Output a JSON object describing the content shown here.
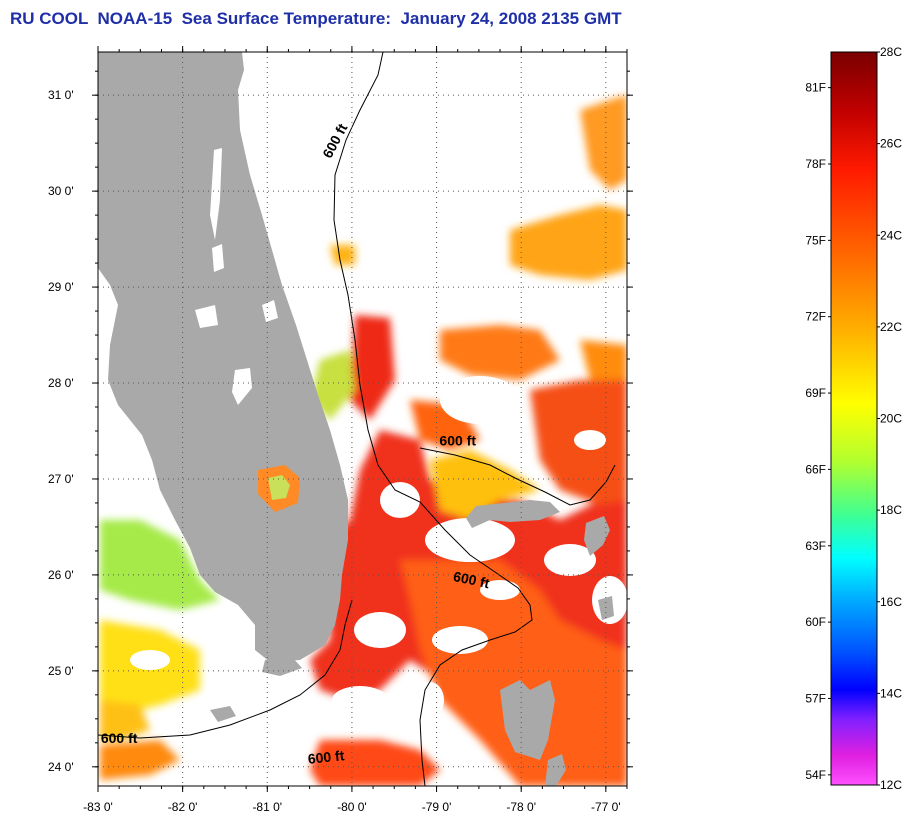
{
  "title": "RU COOL  NOAA-15  Sea Surface Temperature:  January 24, 2008 2135 GMT",
  "colors": {
    "land": "#a9a9a9",
    "title": "#1f2fa8",
    "contour": "#000000"
  },
  "map": {
    "lon_range": [
      -83.0,
      -76.75
    ],
    "lat_range": [
      23.8,
      31.45
    ],
    "lon_ticks": [
      {
        "value": -83,
        "label": "-83 0'"
      },
      {
        "value": -82,
        "label": "-82 0'"
      },
      {
        "value": -81,
        "label": "-81 0'"
      },
      {
        "value": -80,
        "label": "-80 0'"
      },
      {
        "value": -79,
        "label": "-79 0'"
      },
      {
        "value": -78,
        "label": "-78 0'"
      },
      {
        "value": -77,
        "label": "-77 0'"
      }
    ],
    "lat_ticks": [
      {
        "value": 31,
        "label": "31 0'"
      },
      {
        "value": 30,
        "label": "30 0'"
      },
      {
        "value": 29,
        "label": "29 0'"
      },
      {
        "value": 28,
        "label": "28 0'"
      },
      {
        "value": 27,
        "label": "27 0'"
      },
      {
        "value": 26,
        "label": "26 0'"
      },
      {
        "value": 25,
        "label": "25 0'"
      },
      {
        "value": 24,
        "label": "24 0'"
      }
    ],
    "grid": "dotted",
    "contour_labels": [
      {
        "text": "600 ft",
        "lon": -80.15,
        "lat": 30.5,
        "rotation": -62
      },
      {
        "text": "600 ft",
        "lon": -78.75,
        "lat": 27.35,
        "rotation": 0
      },
      {
        "text": "600 ft",
        "lon": -78.6,
        "lat": 25.9,
        "rotation": 12
      },
      {
        "text": "600 ft",
        "lon": -82.75,
        "lat": 24.25,
        "rotation": 0
      },
      {
        "text": "600 ft",
        "lon": -80.3,
        "lat": 24.05,
        "rotation": -6
      }
    ]
  },
  "colorbar": {
    "range_c": [
      12,
      28
    ],
    "celsius_labels": [
      {
        "value": 28,
        "label": "28C"
      },
      {
        "value": 26,
        "label": "26C"
      },
      {
        "value": 24,
        "label": "24C"
      },
      {
        "value": 22,
        "label": "22C"
      },
      {
        "value": 20,
        "label": "20C"
      },
      {
        "value": 18,
        "label": "18C"
      },
      {
        "value": 16,
        "label": "16C"
      },
      {
        "value": 14,
        "label": "14C"
      },
      {
        "value": 12,
        "label": "12C"
      }
    ],
    "fahrenheit_labels": [
      {
        "value": 81,
        "label": "81F"
      },
      {
        "value": 78,
        "label": "78F"
      },
      {
        "value": 75,
        "label": "75F"
      },
      {
        "value": 72,
        "label": "72F"
      },
      {
        "value": 69,
        "label": "69F"
      },
      {
        "value": 66,
        "label": "66F"
      },
      {
        "value": 63,
        "label": "63F"
      },
      {
        "value": 60,
        "label": "60F"
      },
      {
        "value": 57,
        "label": "57F"
      },
      {
        "value": 54,
        "label": "54F"
      }
    ]
  }
}
